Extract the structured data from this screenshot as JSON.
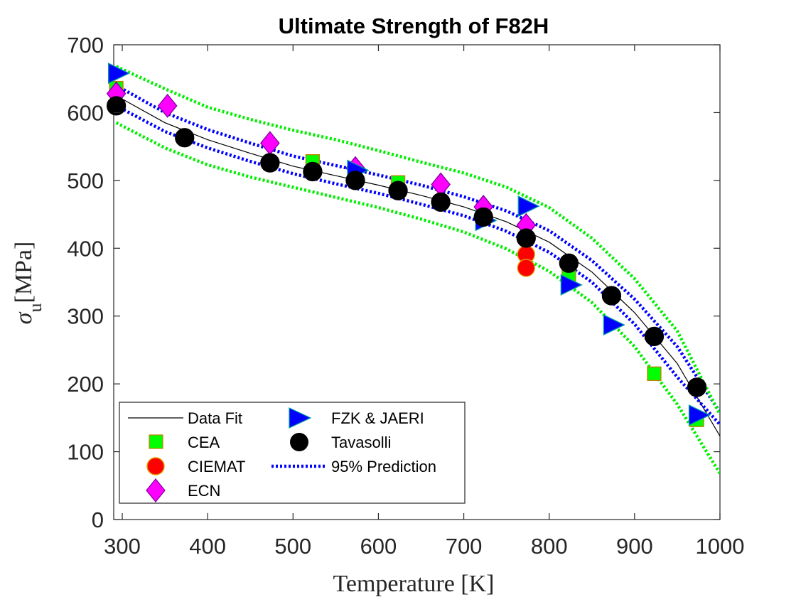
{
  "chart_data": {
    "type": "scatter",
    "title": "Ultimate Strength of F82H",
    "xlabel": "Temperature [K]",
    "ylabel_symbol": "σ",
    "ylabel_subscript": "u",
    "ylabel_unit": "[MPa]",
    "xlim": [
      290,
      1000
    ],
    "ylim": [
      0,
      700
    ],
    "xticks": [
      300,
      400,
      500,
      600,
      700,
      800,
      900,
      1000
    ],
    "yticks": [
      0,
      100,
      200,
      300,
      400,
      500,
      600,
      700
    ],
    "grid": false,
    "legend_position": "bottom-left",
    "series": [
      {
        "name": "CEA",
        "marker": "square",
        "color": "#00ff00",
        "edge": "#c08000",
        "x": [
          293,
          523,
          623,
          823,
          923,
          973
        ],
        "y": [
          636,
          528,
          497,
          358,
          215,
          147
        ]
      },
      {
        "name": "CIEMAT",
        "marker": "circle",
        "color": "#ff0000",
        "edge": "#e0a000",
        "x": [
          773,
          773
        ],
        "y": [
          391,
          371
        ]
      },
      {
        "name": "ECN",
        "marker": "diamond",
        "color": "#ff00ff",
        "edge": "#8000a0",
        "x": [
          293,
          353,
          473,
          573,
          673,
          723,
          773
        ],
        "y": [
          628,
          610,
          555,
          518,
          494,
          461,
          434
        ]
      },
      {
        "name": "FZK & JAERI",
        "marker": "triangle-right",
        "color": "#0000ff",
        "edge": "#00a0a0",
        "x": [
          293,
          573,
          723,
          773,
          823,
          873,
          973
        ],
        "y": [
          658,
          515,
          441,
          462,
          346,
          287,
          154
        ]
      },
      {
        "name": "Tavasolli",
        "marker": "circle",
        "color": "#000000",
        "edge": "#000000",
        "x": [
          293,
          373,
          473,
          523,
          573,
          623,
          673,
          723,
          773,
          823,
          873,
          923,
          973
        ],
        "y": [
          610,
          563,
          526,
          513,
          500,
          485,
          468,
          446,
          415,
          378,
          330,
          270,
          195
        ]
      }
    ],
    "fit_lines": [
      {
        "name": "Data Fit",
        "style": "solid",
        "color": "#000000",
        "x": [
          293,
          350,
          400,
          450,
          500,
          550,
          600,
          650,
          700,
          750,
          800,
          850,
          900,
          950,
          1000
        ],
        "y": [
          625,
          585,
          560,
          540,
          521,
          507,
          493,
          478,
          461,
          439,
          409,
          365,
          305,
          230,
          123
        ]
      },
      {
        "name": "95% Prediction",
        "style": "dotted",
        "color": "#0000ff",
        "x": [
          293,
          350,
          400,
          450,
          500,
          550,
          600,
          650,
          700,
          750,
          800,
          850,
          900,
          950,
          1000
        ],
        "y": [
          640,
          600,
          575,
          555,
          536,
          522,
          508,
          493,
          476,
          455,
          426,
          382,
          325,
          255,
          158
        ]
      },
      {
        "name": "",
        "style": "dotted",
        "color": "#0000ff",
        "x": [
          293,
          350,
          400,
          450,
          500,
          550,
          600,
          650,
          700,
          750,
          800,
          850,
          900,
          950,
          1000
        ],
        "y": [
          610,
          572,
          548,
          528,
          510,
          495,
          481,
          465,
          448,
          425,
          394,
          350,
          288,
          210,
          140
        ]
      },
      {
        "name": "",
        "style": "dotted",
        "color": "#00ee00",
        "x": [
          293,
          350,
          400,
          450,
          500,
          550,
          600,
          650,
          700,
          750,
          800,
          850,
          900,
          950,
          1000
        ],
        "y": [
          668,
          635,
          608,
          590,
          574,
          560,
          544,
          527,
          511,
          490,
          460,
          415,
          355,
          278,
          155
        ]
      },
      {
        "name": "",
        "style": "dotted",
        "color": "#00ee00",
        "x": [
          293,
          350,
          400,
          450,
          500,
          550,
          600,
          650,
          700,
          750,
          800,
          850,
          900,
          950,
          1000
        ],
        "y": [
          585,
          548,
          523,
          505,
          490,
          475,
          460,
          443,
          424,
          399,
          366,
          320,
          255,
          170,
          68
        ]
      }
    ],
    "legend_col1": [
      "Data Fit",
      "CEA",
      "CIEMAT",
      "ECN"
    ],
    "legend_col2": [
      "FZK & JAERI",
      "Tavasolli",
      "95% Prediction"
    ]
  }
}
